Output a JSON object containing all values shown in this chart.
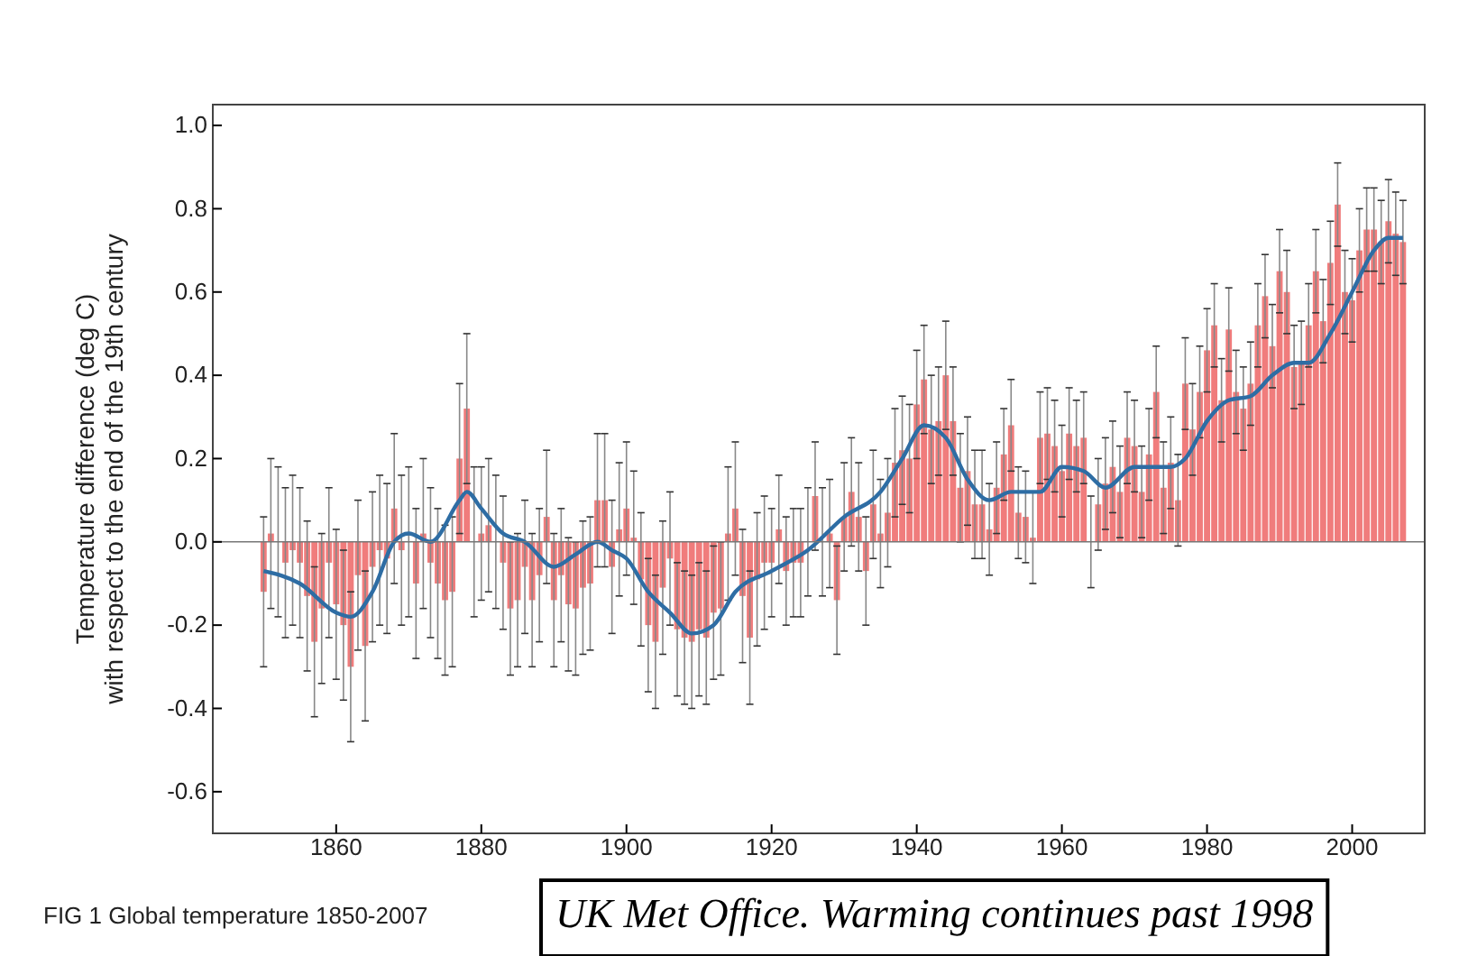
{
  "chart_data": {
    "type": "bar",
    "ylabel": "Temperature difference (deg C)\nwith respect to the end of the 19th century",
    "xlim": [
      1843,
      2010
    ],
    "xticks": [
      1860,
      1880,
      1900,
      1920,
      1940,
      1960,
      1980,
      2000
    ],
    "ylim": [
      -0.7,
      1.05
    ],
    "yticks": [
      {
        "value": -0.6,
        "label": "-0.6"
      },
      {
        "value": -0.4,
        "label": "-0.4"
      },
      {
        "value": -0.2,
        "label": "-0.2"
      },
      {
        "value": 0,
        "label": "0.0"
      },
      {
        "value": 0.2,
        "label": "0.2"
      },
      {
        "value": 0.4,
        "label": "0.4"
      },
      {
        "value": 0.6,
        "label": "0.6"
      },
      {
        "value": 0.8,
        "label": "0.8"
      },
      {
        "value": 1.0,
        "label": "1.0"
      }
    ],
    "ref_lines": [
      {
        "axis": "y",
        "value": 0,
        "color": "#777777"
      }
    ],
    "series": [
      {
        "color": "#f07c7c",
        "x": [
          1850,
          1851,
          1852,
          1853,
          1854,
          1855,
          1856,
          1857,
          1858,
          1859,
          1860,
          1861,
          1862,
          1863,
          1864,
          1865,
          1866,
          1867,
          1868,
          1869,
          1870,
          1871,
          1872,
          1873,
          1874,
          1875,
          1876,
          1877,
          1878,
          1879,
          1880,
          1881,
          1882,
          1883,
          1884,
          1885,
          1886,
          1887,
          1888,
          1889,
          1890,
          1891,
          1892,
          1893,
          1894,
          1895,
          1896,
          1897,
          1898,
          1899,
          1900,
          1901,
          1902,
          1903,
          1904,
          1905,
          1906,
          1907,
          1908,
          1909,
          1910,
          1911,
          1912,
          1913,
          1914,
          1915,
          1916,
          1917,
          1918,
          1919,
          1920,
          1921,
          1922,
          1923,
          1924,
          1925,
          1926,
          1927,
          1928,
          1929,
          1930,
          1931,
          1932,
          1933,
          1934,
          1935,
          1936,
          1937,
          1938,
          1939,
          1940,
          1941,
          1942,
          1943,
          1944,
          1945,
          1946,
          1947,
          1948,
          1949,
          1950,
          1951,
          1952,
          1953,
          1954,
          1955,
          1956,
          1957,
          1958,
          1959,
          1960,
          1961,
          1962,
          1963,
          1964,
          1965,
          1966,
          1967,
          1968,
          1969,
          1970,
          1971,
          1972,
          1973,
          1974,
          1975,
          1976,
          1977,
          1978,
          1979,
          1980,
          1981,
          1982,
          1983,
          1984,
          1985,
          1986,
          1987,
          1988,
          1989,
          1990,
          1991,
          1992,
          1993,
          1994,
          1995,
          1996,
          1997,
          1998,
          1999,
          2000,
          2001,
          2002,
          2003,
          2004,
          2005,
          2006,
          2007
        ],
        "values": [
          -0.12,
          0.02,
          0.0,
          -0.05,
          -0.02,
          -0.05,
          -0.13,
          -0.24,
          -0.16,
          -0.05,
          -0.15,
          -0.2,
          -0.3,
          -0.08,
          -0.25,
          -0.06,
          -0.02,
          -0.04,
          0.08,
          -0.02,
          0.0,
          -0.1,
          0.02,
          -0.05,
          -0.1,
          -0.14,
          -0.12,
          0.2,
          0.32,
          0.0,
          0.02,
          0.04,
          0.0,
          -0.05,
          -0.16,
          -0.14,
          -0.06,
          -0.14,
          -0.08,
          0.06,
          -0.14,
          -0.08,
          -0.15,
          -0.16,
          -0.11,
          -0.1,
          0.1,
          0.1,
          -0.06,
          0.03,
          0.08,
          0.01,
          -0.09,
          -0.2,
          -0.24,
          -0.11,
          -0.04,
          -0.21,
          -0.23,
          -0.24,
          -0.21,
          -0.23,
          -0.17,
          -0.16,
          0.02,
          0.08,
          -0.13,
          -0.23,
          -0.09,
          -0.05,
          -0.05,
          0.03,
          -0.07,
          -0.05,
          -0.05,
          0.0,
          0.11,
          0.0,
          0.02,
          -0.14,
          0.06,
          0.12,
          0.06,
          -0.07,
          0.09,
          0.02,
          0.07,
          0.19,
          0.22,
          0.2,
          0.33,
          0.39,
          0.27,
          0.29,
          0.4,
          0.29,
          0.13,
          0.17,
          0.09,
          0.09,
          0.03,
          0.13,
          0.21,
          0.28,
          0.07,
          0.06,
          0.01,
          0.25,
          0.26,
          0.23,
          0.17,
          0.26,
          0.23,
          0.25,
          0.0,
          0.09,
          0.14,
          0.18,
          0.12,
          0.25,
          0.23,
          0.12,
          0.21,
          0.36,
          0.13,
          0.19,
          0.1,
          0.38,
          0.27,
          0.36,
          0.46,
          0.52,
          0.34,
          0.51,
          0.36,
          0.32,
          0.38,
          0.52,
          0.59,
          0.47,
          0.65,
          0.6,
          0.42,
          0.43,
          0.52,
          0.65,
          0.53,
          0.67,
          0.81,
          0.6,
          0.58,
          0.7,
          0.75,
          0.75,
          0.72,
          0.77,
          0.74,
          0.72
        ],
        "errors": [
          0.18,
          0.18,
          0.18,
          0.18,
          0.18,
          0.18,
          0.18,
          0.18,
          0.18,
          0.18,
          0.18,
          0.18,
          0.18,
          0.18,
          0.18,
          0.18,
          0.18,
          0.18,
          0.18,
          0.18,
          0.18,
          0.18,
          0.18,
          0.18,
          0.18,
          0.18,
          0.18,
          0.18,
          0.18,
          0.18,
          0.16,
          0.16,
          0.16,
          0.16,
          0.16,
          0.16,
          0.16,
          0.16,
          0.16,
          0.16,
          0.16,
          0.16,
          0.16,
          0.16,
          0.16,
          0.16,
          0.16,
          0.16,
          0.16,
          0.16,
          0.16,
          0.16,
          0.16,
          0.16,
          0.16,
          0.16,
          0.16,
          0.16,
          0.16,
          0.16,
          0.16,
          0.16,
          0.16,
          0.16,
          0.16,
          0.16,
          0.16,
          0.16,
          0.16,
          0.16,
          0.13,
          0.13,
          0.13,
          0.13,
          0.13,
          0.13,
          0.13,
          0.13,
          0.13,
          0.13,
          0.13,
          0.13,
          0.13,
          0.13,
          0.13,
          0.13,
          0.13,
          0.13,
          0.13,
          0.13,
          0.13,
          0.13,
          0.13,
          0.13,
          0.13,
          0.13,
          0.13,
          0.13,
          0.13,
          0.13,
          0.11,
          0.11,
          0.11,
          0.11,
          0.11,
          0.11,
          0.11,
          0.11,
          0.11,
          0.11,
          0.11,
          0.11,
          0.11,
          0.11,
          0.11,
          0.11,
          0.11,
          0.11,
          0.11,
          0.11,
          0.11,
          0.11,
          0.11,
          0.11,
          0.11,
          0.11,
          0.11,
          0.11,
          0.11,
          0.11,
          0.1,
          0.1,
          0.1,
          0.1,
          0.1,
          0.1,
          0.1,
          0.1,
          0.1,
          0.1,
          0.1,
          0.1,
          0.1,
          0.1,
          0.1,
          0.1,
          0.1,
          0.1,
          0.1,
          0.1,
          0.1,
          0.1,
          0.1,
          0.1,
          0.1,
          0.1,
          0.1,
          0.1
        ]
      },
      {
        "type": "line",
        "color": "#2e6da4",
        "x": [
          1850,
          1855,
          1860,
          1862,
          1865,
          1868,
          1870,
          1873,
          1877,
          1878,
          1880,
          1883,
          1886,
          1890,
          1893,
          1896,
          1898,
          1900,
          1903,
          1906,
          1909,
          1912,
          1915,
          1920,
          1925,
          1930,
          1935,
          1938,
          1941,
          1944,
          1947,
          1950,
          1953,
          1957,
          1960,
          1963,
          1966,
          1970,
          1975,
          1977,
          1980,
          1983,
          1986,
          1989,
          1992,
          1994,
          1997,
          2000,
          2003,
          2005,
          2007
        ],
        "values": [
          -0.07,
          -0.1,
          -0.17,
          -0.18,
          -0.12,
          0.0,
          0.02,
          0.0,
          0.1,
          0.12,
          0.08,
          0.02,
          0.0,
          -0.06,
          -0.03,
          0.0,
          -0.02,
          -0.04,
          -0.12,
          -0.17,
          -0.22,
          -0.2,
          -0.12,
          -0.07,
          -0.02,
          0.06,
          0.12,
          0.2,
          0.28,
          0.25,
          0.15,
          0.1,
          0.12,
          0.12,
          0.18,
          0.17,
          0.13,
          0.18,
          0.18,
          0.2,
          0.29,
          0.34,
          0.35,
          0.4,
          0.43,
          0.43,
          0.5,
          0.6,
          0.7,
          0.73,
          0.73
        ]
      }
    ],
    "annotations": [
      "FIG 1 Global temperature 1850-2007",
      "UK Met Office. Warming continues past 1998"
    ]
  }
}
